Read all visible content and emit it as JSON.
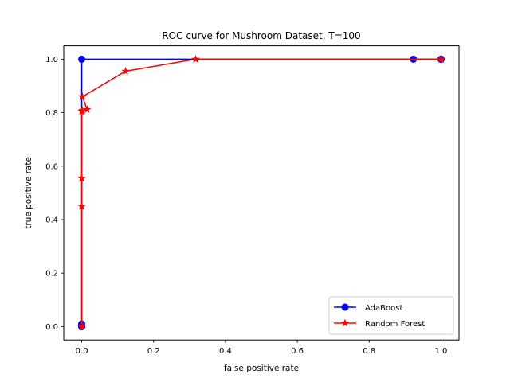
{
  "chart_data": {
    "type": "line",
    "title": "ROC curve for Mushroom Dataset, T=100",
    "xlabel": "false positive rate",
    "ylabel": "true positive rate",
    "xlim": [
      -0.05,
      1.05
    ],
    "ylim": [
      -0.05,
      1.05
    ],
    "xticks": [
      0.0,
      0.2,
      0.4,
      0.6,
      0.8,
      1.0
    ],
    "yticks": [
      0.0,
      0.2,
      0.4,
      0.6,
      0.8,
      1.0
    ],
    "xtick_labels": [
      "0.0",
      "0.2",
      "0.4",
      "0.6",
      "0.8",
      "1.0"
    ],
    "ytick_labels": [
      "0.0",
      "0.2",
      "0.4",
      "0.6",
      "0.8",
      "1.0"
    ],
    "grid": false,
    "legend_position": "lower-right",
    "series": [
      {
        "name": "AdaBoost",
        "color": "#0000ff",
        "marker": "circle",
        "x": [
          0.0,
          0.0,
          0.0,
          0.0,
          0.923,
          1.0,
          1.0,
          1.0
        ],
        "y": [
          0.0,
          0.0,
          0.01,
          1.0,
          1.0,
          1.0,
          1.0,
          1.0
        ]
      },
      {
        "name": "Random Forest",
        "color": "#ff0000",
        "marker": "star",
        "x": [
          0.0,
          0.0,
          0.0,
          0.0,
          0.0,
          0.002,
          0.015,
          0.002,
          0.122,
          0.317,
          1.0,
          1.0
        ],
        "y": [
          0.0,
          0.0,
          0.45,
          0.555,
          0.805,
          0.808,
          0.812,
          0.86,
          0.955,
          1.0,
          1.0,
          1.0
        ]
      }
    ]
  }
}
